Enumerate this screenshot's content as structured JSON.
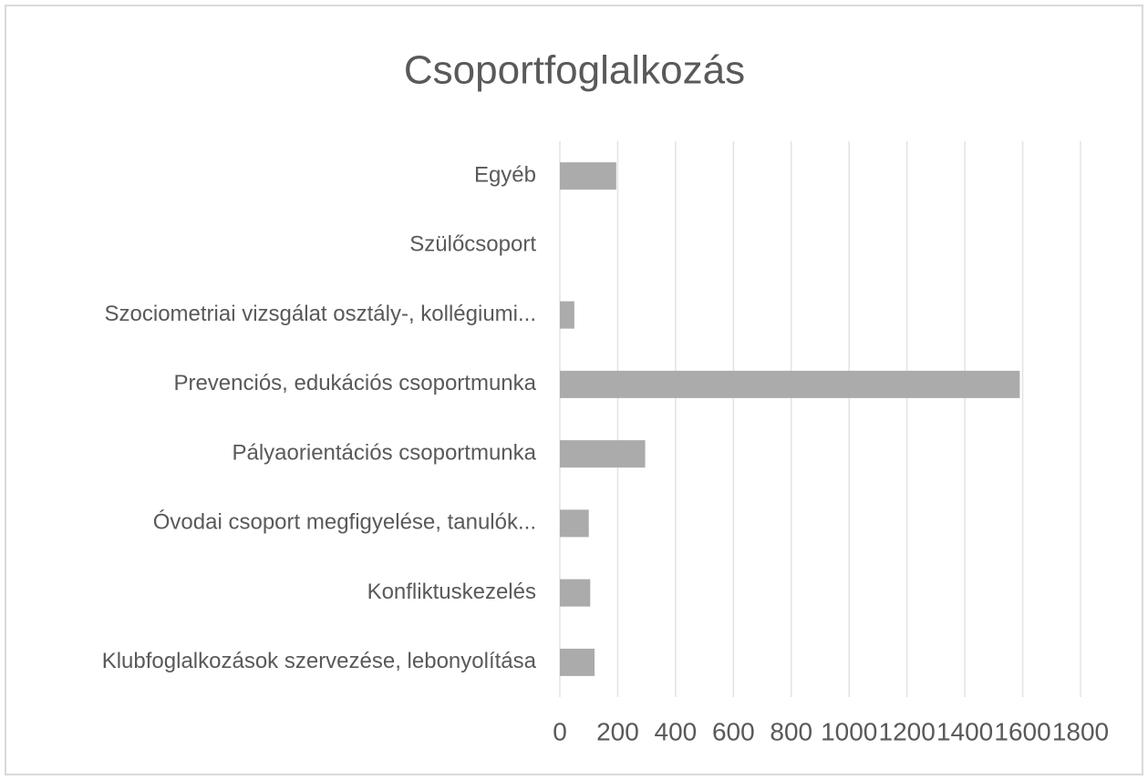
{
  "chart_data": {
    "type": "bar",
    "orientation": "horizontal",
    "title": "Csoportfoglalkozás",
    "categories": [
      "Egyéb",
      "Szülőcsoport",
      "Szociometriai vizsgálat osztály-, kollégiumi...",
      "Prevenciós, edukációs csoportmunka",
      "Pályaorientációs csoportmunka",
      "Óvodai csoport megfigyelése, tanulók...",
      "Konfliktuskezelés",
      "Klubfoglalkozások szervezése, lebonyolítása"
    ],
    "values": [
      195,
      0,
      50,
      1590,
      295,
      100,
      105,
      120
    ],
    "color": "#ababab",
    "xlim": [
      0,
      1800
    ],
    "xticks": [
      0,
      200,
      400,
      600,
      800,
      1000,
      1200,
      1400,
      1600,
      1800
    ],
    "grid": true
  }
}
